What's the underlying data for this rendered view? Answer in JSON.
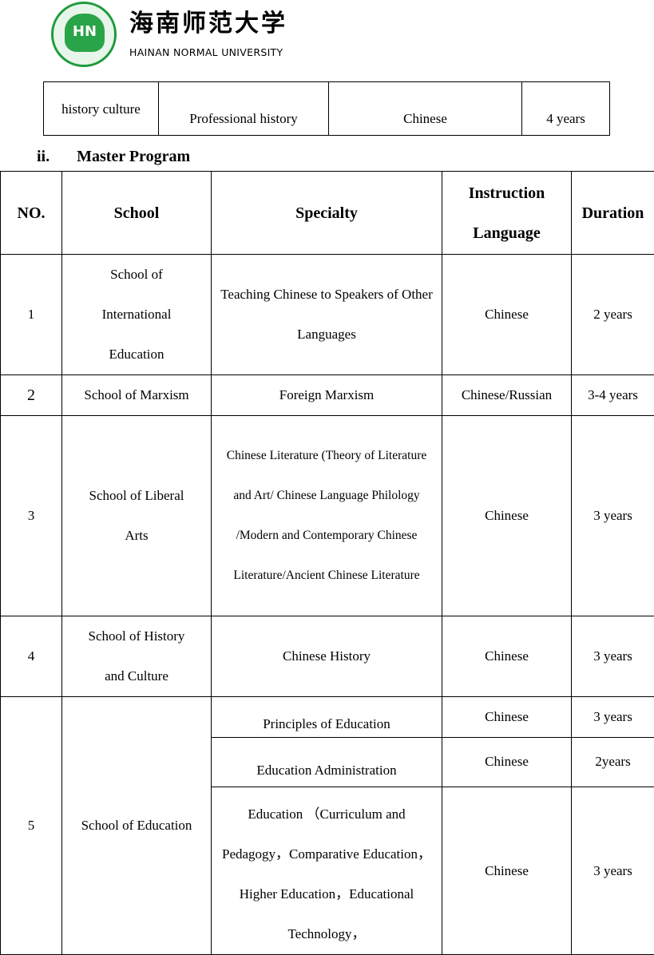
{
  "logo": {
    "chinese": "海南师范大学",
    "english": "HAINAN NORMAL UNIVERSITY",
    "seal_text": "HAINAN NORMAL UNIVERSITY",
    "brand_color": "#1f9a3c"
  },
  "top_row": [
    "history culture",
    "Professional history",
    "Chinese",
    "4 years"
  ],
  "section": {
    "numeral": "ii.",
    "title": "Master  Program"
  },
  "headers": [
    "NO.",
    "School",
    "Specialty",
    "Instruction Language",
    "Duration"
  ],
  "rows": [
    {
      "no": "1",
      "school": "School of International Education",
      "specialty": "Teaching Chinese to Speakers of Other Languages",
      "language": "Chinese",
      "duration": "2 years"
    },
    {
      "no": "2",
      "school": "School of Marxism",
      "specialty": "Foreign Marxism",
      "language": "Chinese/Russian",
      "duration": "3-4 years"
    },
    {
      "no": "3",
      "school": "School of Liberal Arts",
      "specialty": "Chinese Literature (Theory of Literature and Art/ Chinese Language Philology /Modern and Contemporary Chinese Literature/Ancient Chinese Literature",
      "language": "Chinese",
      "duration": "3 years"
    },
    {
      "no": "4",
      "school": "School of History and Culture",
      "specialty": "Chinese History",
      "language": "Chinese",
      "duration": "3 years"
    }
  ],
  "row5": {
    "no": "5",
    "school": "School of Education",
    "subs": [
      {
        "specialty": "Principles of Education",
        "language": "Chinese",
        "duration": "3 years"
      },
      {
        "specialty": "Education Administration",
        "language": "Chinese",
        "duration": "2years"
      },
      {
        "specialty": "Education （Curriculum and Pedagogy，Comparative Education，Higher Education，Educational Technology，",
        "language": "Chinese",
        "duration": "3 years"
      }
    ]
  }
}
